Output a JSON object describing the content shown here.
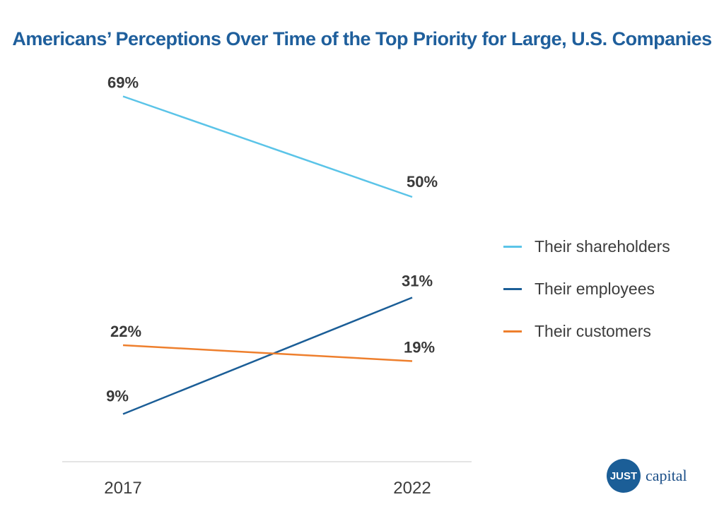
{
  "title": "Americans’ Perceptions Over Time of the Top Priority for Large, U.S. Companies",
  "chart_data": {
    "type": "line",
    "title": "Americans’ Perceptions Over Time of the Top Priority for Large, U.S. Companies",
    "categories": [
      "2017",
      "2022"
    ],
    "ylim": [
      0,
      75
    ],
    "unit": "%",
    "grid": false,
    "legend_position": "right",
    "series": [
      {
        "name": "Their shareholders",
        "values": [
          69,
          50
        ],
        "labels": [
          "69%",
          "50%"
        ],
        "color": "#5bc4e8"
      },
      {
        "name": "Their employees",
        "values": [
          9,
          31
        ],
        "labels": [
          "9%",
          "31%"
        ],
        "color": "#1b5e97"
      },
      {
        "name": "Their customers",
        "values": [
          22,
          19
        ],
        "labels": [
          "22%",
          "19%"
        ],
        "color": "#ee7f2d"
      }
    ]
  },
  "logo": {
    "badge_text": "JUST",
    "text": "capital",
    "color": "#1b5e97"
  }
}
